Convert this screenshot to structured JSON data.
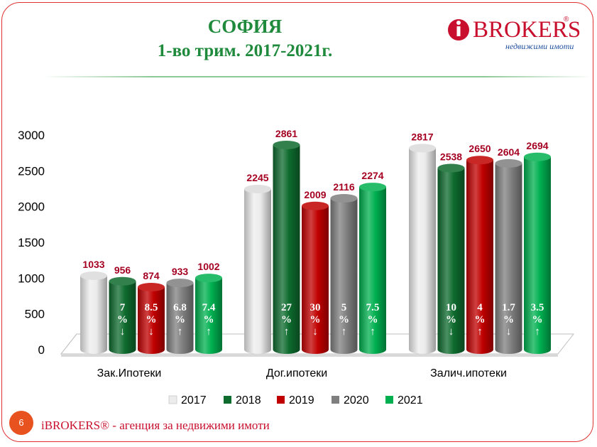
{
  "page": {
    "title_line1": "СОФИЯ",
    "title_line2": "1-во трим. 2017-2021г.",
    "page_number": "6",
    "footer": "iBROKERS® - агенция за недвижими имоти"
  },
  "logo": {
    "name": "BROKERS",
    "reg": "®",
    "tagline": "недвижими имоти",
    "icon": "i-circle-logo-icon"
  },
  "colors": {
    "2017": "#ececec",
    "2018": "#0e6b2e",
    "2019": "#c00000",
    "2020": "#7f7f7f",
    "2021": "#00b050",
    "value_label": "#a50021",
    "title": "#1f8a3c",
    "accent": "#c8102e"
  },
  "chart_data": {
    "type": "bar",
    "style": "3d-cylinder",
    "title": "",
    "xlabel": "",
    "ylabel": "",
    "ylim": [
      0,
      3000
    ],
    "yticks": [
      0,
      500,
      1000,
      1500,
      2000,
      2500,
      3000
    ],
    "categories": [
      "Зак.Ипотеки",
      "Дог.ипотеки",
      "Залич.ипотеки"
    ],
    "series": [
      {
        "name": "2017",
        "values": [
          1033,
          2245,
          2817
        ],
        "changes": [
          null,
          null,
          null
        ]
      },
      {
        "name": "2018",
        "values": [
          956,
          2861,
          2538
        ],
        "changes": [
          {
            "pct": "7",
            "dir": "↓"
          },
          {
            "pct": "27",
            "dir": "↑"
          },
          {
            "pct": "10",
            "dir": "↓"
          }
        ]
      },
      {
        "name": "2019",
        "values": [
          874,
          2009,
          2650
        ],
        "changes": [
          {
            "pct": "8.5",
            "dir": "↓"
          },
          {
            "pct": "30",
            "dir": "↓"
          },
          {
            "pct": "4",
            "dir": "↑"
          }
        ]
      },
      {
        "name": "2020",
        "values": [
          933,
          2116,
          2604
        ],
        "changes": [
          {
            "pct": "6.8",
            "dir": "↑"
          },
          {
            "pct": "5",
            "dir": "↑"
          },
          {
            "pct": "1.7",
            "dir": "↓"
          }
        ]
      },
      {
        "name": "2021",
        "values": [
          1002,
          2274,
          2694
        ],
        "changes": [
          {
            "pct": "7.4",
            "dir": "↑"
          },
          {
            "pct": "7.5",
            "dir": "↑"
          },
          {
            "pct": "3.5",
            "dir": "↑"
          }
        ]
      }
    ],
    "legend_position": "bottom",
    "grid": false
  }
}
